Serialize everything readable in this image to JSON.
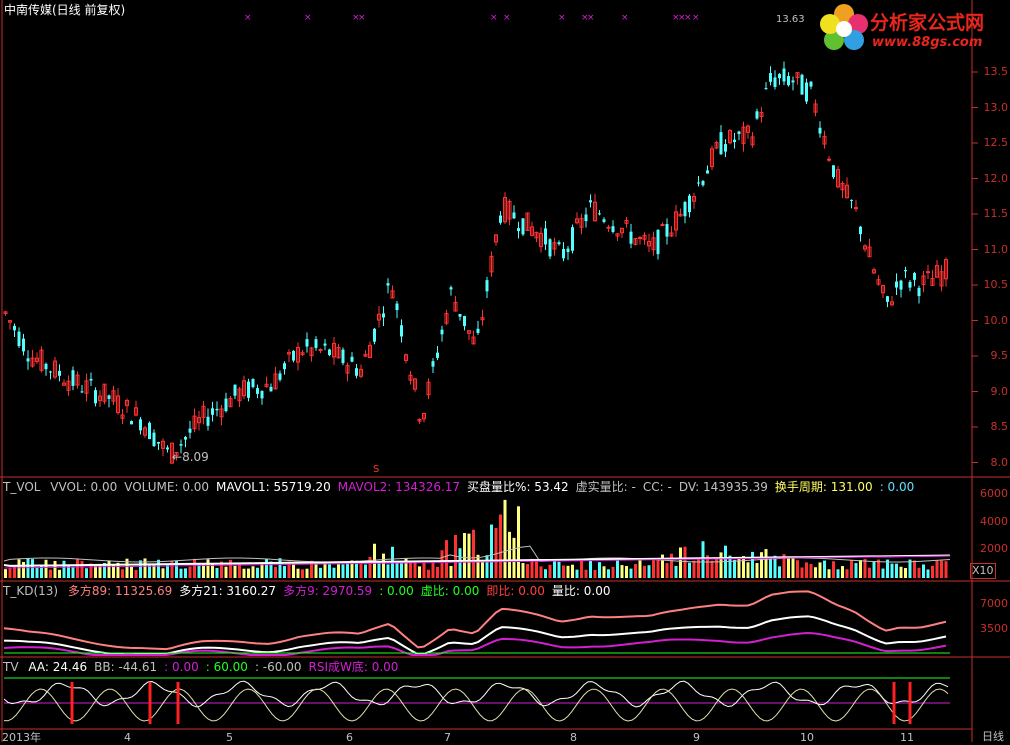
{
  "title": "中南传媒(日线 前复权)",
  "logo": {
    "text": "分析家公式网",
    "url": "www.88gs.com"
  },
  "main_chart": {
    "price_ticks": [
      "13.5",
      "13.0",
      "12.5",
      "12.0",
      "11.5",
      "11.0",
      "10.5",
      "10.0",
      "9.5",
      "9.0",
      "8.5",
      "8.0"
    ],
    "low_label": "8.09",
    "high_label": "13.63",
    "s_marker": "S"
  },
  "vol_panel": {
    "name": "T_VOL",
    "items": [
      {
        "label": "VVOL: 0.00",
        "color": "#c0c0c0"
      },
      {
        "label": "VOLUME: 0.00",
        "color": "#c0c0c0"
      },
      {
        "label": "MAVOL1: 55719.20",
        "color": "#ffffff"
      },
      {
        "label": "MAVOL2: 134326.17",
        "color": "#d020d0"
      },
      {
        "label": "买盘量比%: 53.42",
        "color": "#ffffff"
      },
      {
        "label": "虚实量比: -",
        "color": "#c0c0c0"
      },
      {
        "label": "CC: -",
        "color": "#c0c0c0"
      },
      {
        "label": "DV: 143935.39",
        "color": "#c0c0c0"
      },
      {
        "label": "换手周期: 131.00",
        "color": "#ffff60"
      },
      {
        "label": ": 0.00",
        "color": "#60e0ff"
      }
    ],
    "ticks": [
      "6000",
      "4000",
      "2000"
    ],
    "unit": "X10"
  },
  "kd_panel": {
    "name": "T_KD(13)",
    "items": [
      {
        "label": "多方89: 11325.69",
        "color": "#ff8080"
      },
      {
        "label": "多方21: 3160.27",
        "color": "#ffffff"
      },
      {
        "label": "多方9: 2970.59",
        "color": "#d020d0"
      },
      {
        "label": ": 0.00",
        "color": "#20ff20"
      },
      {
        "label": "虚比: 0.00",
        "color": "#20ff20"
      },
      {
        "label": "即比: 0.00",
        "color": "#ff4040"
      },
      {
        "label": "量比: 0.00",
        "color": "#ffffff"
      }
    ],
    "ticks": [
      "7000",
      "3500"
    ]
  },
  "tv_panel": {
    "name": "TV",
    "items": [
      {
        "label": "AA: 24.46",
        "color": "#ffffff"
      },
      {
        "label": "BB: -44.61",
        "color": "#c0c0c0"
      },
      {
        "label": ": 0.00",
        "color": "#d020d0"
      },
      {
        "label": ": 60.00",
        "color": "#20ff20"
      },
      {
        "label": ": -60.00",
        "color": "#c0c0c0"
      },
      {
        "label": "RSI成W底: 0.00",
        "color": "#d020d0"
      }
    ]
  },
  "x_axis": {
    "labels": [
      "2013年",
      "4",
      "5",
      "6",
      "7",
      "8",
      "9",
      "10",
      "11"
    ],
    "period": "日线"
  },
  "colors": {
    "up": "#ff3232",
    "down": "#54ffff",
    "axis": "#c8302b",
    "bg": "#000000"
  }
}
